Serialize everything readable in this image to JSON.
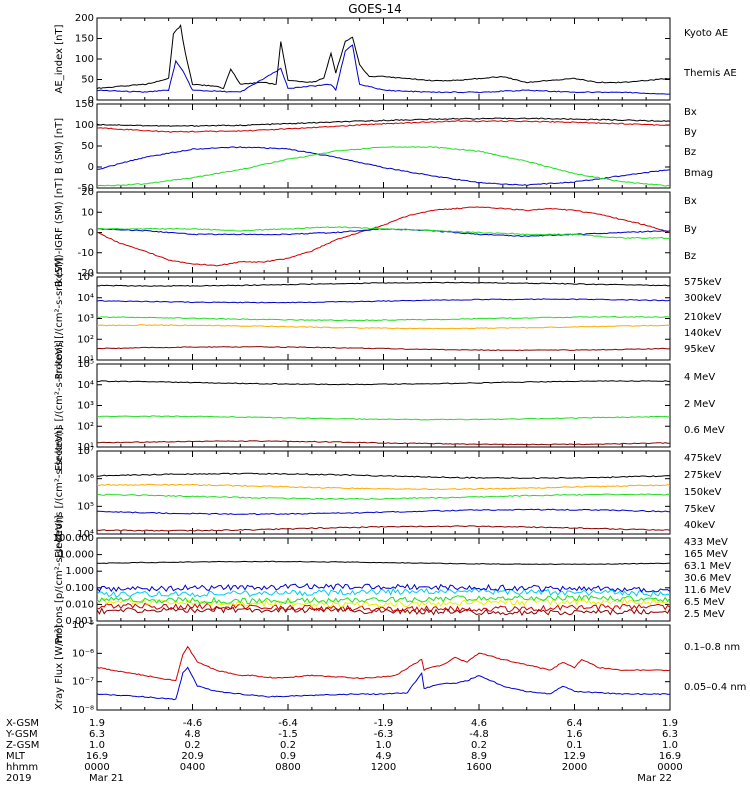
{
  "title": "GOES-14",
  "colors": {
    "black": "#000000",
    "blue": "#0000cc",
    "red": "#cc0000",
    "green": "#22dd22",
    "orange": "#ffaa00",
    "darkred": "#8b0000",
    "lightblue": "#3399ff",
    "cyan": "#00ccee",
    "yellow": "#eeee00"
  },
  "chart_data": [
    {
      "type": "line",
      "ylabel": "AE_index [nT]",
      "yticks": [
        "200",
        "150",
        "100",
        "50",
        "0"
      ],
      "ylim": [
        0,
        210
      ],
      "legend": [
        "Kyoto AE",
        "Themis AE"
      ],
      "series": [
        {
          "name": "Themis AE",
          "color": "black",
          "x": [
            0,
            1,
            2,
            3,
            3.2,
            3.5,
            3.7,
            4,
            5,
            5.3,
            5.6,
            6,
            7,
            7.5,
            7.7,
            8,
            9,
            9.5,
            9.8,
            10,
            10.4,
            10.7,
            11,
            11.4,
            12,
            13,
            14,
            15,
            16,
            17,
            18,
            19,
            20,
            21,
            22,
            23,
            24
          ],
          "y": [
            30,
            35,
            40,
            55,
            170,
            190,
            120,
            40,
            35,
            30,
            80,
            40,
            45,
            40,
            150,
            50,
            45,
            55,
            120,
            70,
            150,
            160,
            90,
            60,
            60,
            55,
            50,
            50,
            55,
            60,
            45,
            50,
            55,
            45,
            45,
            50,
            55
          ]
        },
        {
          "name": "Kyoto AE",
          "color": "blue",
          "x": [
            0,
            2,
            3,
            3.3,
            3.6,
            4,
            6,
            7.7,
            8,
            9.8,
            10,
            10.4,
            10.7,
            11,
            12,
            14,
            16,
            18,
            20,
            22,
            24
          ],
          "y": [
            25,
            20,
            25,
            100,
            75,
            25,
            20,
            80,
            30,
            40,
            25,
            125,
            140,
            40,
            25,
            20,
            20,
            25,
            20,
            20,
            15
          ]
        }
      ]
    },
    {
      "type": "line",
      "ylabel": "B (SM) [nT]",
      "yticks": [
        "150",
        "100",
        "50",
        "0",
        "-50"
      ],
      "ylim": [
        -55,
        150
      ],
      "legend": [
        "Bx",
        "By",
        "Bz",
        "Bmag"
      ],
      "series": [
        {
          "name": "Bmag",
          "color": "black",
          "x": [
            0,
            3,
            6,
            9,
            12,
            15,
            18,
            21,
            24
          ],
          "y": [
            100,
            96,
            98,
            104,
            110,
            114,
            115,
            112,
            108
          ]
        },
        {
          "name": "Bz",
          "color": "red",
          "x": [
            0,
            3,
            6,
            9,
            12,
            15,
            18,
            21,
            24
          ],
          "y": [
            92,
            82,
            84,
            92,
            102,
            108,
            108,
            104,
            98
          ]
        },
        {
          "name": "Bx",
          "color": "blue",
          "x": [
            0,
            2,
            4,
            6,
            8,
            10,
            12,
            14,
            16,
            18,
            20,
            22,
            24
          ],
          "y": [
            -10,
            20,
            40,
            45,
            40,
            20,
            -5,
            -25,
            -42,
            -48,
            -40,
            -25,
            -10
          ]
        },
        {
          "name": "By",
          "color": "green",
          "x": [
            0,
            2,
            4,
            6,
            8,
            10,
            12,
            14,
            16,
            18,
            20,
            22,
            24
          ],
          "y": [
            -50,
            -45,
            -30,
            -10,
            15,
            35,
            45,
            45,
            35,
            10,
            -20,
            -40,
            -50
          ]
        }
      ]
    },
    {
      "type": "line",
      "ylabel": "B (SM)-IGRF (SM) [nT]",
      "yticks": [
        "20",
        "10",
        "0",
        "-10",
        "-20"
      ],
      "ylim": [
        -22,
        22
      ],
      "legend": [
        "Bx",
        "By",
        "Bz"
      ],
      "series": [
        {
          "name": "Bz",
          "color": "red",
          "x": [
            0,
            1,
            2,
            3,
            4,
            5,
            6,
            7,
            8,
            9,
            10,
            11,
            12,
            13,
            14,
            15,
            16,
            17,
            18,
            19,
            20,
            21,
            22,
            23,
            24
          ],
          "y": [
            0,
            -6,
            -10,
            -15,
            -17,
            -18,
            -16,
            -16,
            -14,
            -10,
            -4,
            0,
            4,
            9,
            12,
            13,
            14,
            13,
            12,
            13,
            12,
            10,
            7,
            4,
            0
          ]
        },
        {
          "name": "Bx",
          "color": "blue",
          "x": [
            0,
            2,
            4,
            6,
            8,
            10,
            12,
            14,
            16,
            18,
            20,
            22,
            24
          ],
          "y": [
            2,
            1,
            -1,
            -1,
            -1,
            0,
            2,
            1,
            -1,
            -2,
            -1,
            0,
            1
          ]
        },
        {
          "name": "By",
          "color": "green",
          "x": [
            0,
            2,
            4,
            6,
            8,
            10,
            12,
            14,
            16,
            18,
            20,
            22,
            24
          ],
          "y": [
            2,
            2,
            2,
            1,
            2,
            3,
            2,
            1,
            0,
            -1,
            -1,
            -3,
            -3
          ]
        }
      ]
    },
    {
      "type": "line",
      "ylabel": "Protons [/(cm²-s-sr-keV)]",
      "yticks": [
        "10⁵",
        "10⁴",
        "10³",
        "10²",
        "10¹"
      ],
      "ylim_log": [
        1,
        5
      ],
      "legend": [
        "575keV",
        "300keV",
        "210keV",
        "140keV",
        "95keV"
      ],
      "series": [
        {
          "name": "575keV",
          "color": "darkred",
          "y": 1.55
        },
        {
          "name": "300keV",
          "color": "orange",
          "y": 2.6
        },
        {
          "name": "210keV",
          "color": "green",
          "y": 3.0
        },
        {
          "name": "140keV",
          "color": "blue",
          "y": 3.85
        },
        {
          "name": "95keV",
          "color": "black",
          "y": 4.65
        }
      ]
    },
    {
      "type": "line",
      "ylabel": "Electrons [/(cm²-s-sr-keV)]",
      "yticks": [
        "10⁵",
        "10⁴",
        "10³",
        "10²",
        "10¹"
      ],
      "ylim_log": [
        1,
        5
      ],
      "legend": [
        "4 MeV",
        "2 MeV",
        "0.6 MeV"
      ],
      "series": [
        {
          "name": "4 MeV",
          "color": "darkred",
          "y": 1.2
        },
        {
          "name": "2 MeV",
          "color": "green",
          "y": 2.4
        },
        {
          "name": "0.6 MeV",
          "color": "black",
          "y": 4.1
        }
      ]
    },
    {
      "type": "line",
      "ylabel": "Electrons [/(cm²-s-sr-keV)]",
      "yticks": [
        "10⁷",
        "10⁶",
        "10⁵",
        "10⁴"
      ],
      "ylim_log": [
        4,
        7
      ],
      "legend": [
        "475keV",
        "275keV",
        "150keV",
        "75keV",
        "40keV"
      ],
      "series": [
        {
          "name": "475keV",
          "color": "black",
          "y": 6.1
        },
        {
          "name": "275keV",
          "color": "orange",
          "y": 5.7
        },
        {
          "name": "150keV",
          "color": "green",
          "y": 5.35
        },
        {
          "name": "75keV",
          "color": "blue",
          "y": 4.8
        },
        {
          "name": "40keV",
          "color": "darkred",
          "y": 4.2
        }
      ]
    },
    {
      "type": "line",
      "ylabel": "Protons [p/(cm²-s-sr-keV)]",
      "yticks": [
        "100.000",
        "10.000",
        "1.000",
        "0.100",
        "0.010",
        "0.001"
      ],
      "ylim_log": [
        -3,
        2
      ],
      "legend": [
        "433 MeV",
        "165 MeV",
        "63.1 MeV",
        "30.6 MeV",
        "11.6 MeV",
        "6.5 MeV",
        "2.5 MeV"
      ],
      "series": [
        {
          "name": "433 MeV",
          "color": "darkred",
          "y": -2.4
        },
        {
          "name": "165 MeV",
          "color": "red",
          "y": -2.2
        },
        {
          "name": "63.1 MeV",
          "color": "yellow",
          "y": -1.9
        },
        {
          "name": "30.6 MeV",
          "color": "green",
          "y": -1.7
        },
        {
          "name": "11.6 MeV",
          "color": "cyan",
          "y": -1.3
        },
        {
          "name": "6.5 MeV",
          "color": "blue",
          "y": -1.0
        },
        {
          "name": "2.5 MeV",
          "color": "black",
          "y": 0.5
        }
      ]
    },
    {
      "type": "line",
      "ylabel": "Xray Flux [W/m²]",
      "yticks": [
        "10⁻⁵",
        "10⁻⁶",
        "10⁻⁷",
        "10⁻⁸"
      ],
      "ylim_log": [
        -8.2,
        -5
      ],
      "legend": [
        "0.1–0.8 nm",
        "0.05–0.4 nm"
      ],
      "series": [
        {
          "name": "0.1–0.8 nm",
          "color": "red",
          "x": [
            0,
            2,
            3.3,
            3.6,
            3.8,
            4.2,
            5,
            6,
            6.5,
            7.5,
            9,
            11,
            12,
            12.5,
            13.6,
            13.7,
            14,
            14.5,
            15,
            15.2,
            15.5,
            16,
            17,
            18,
            19,
            19.5,
            20,
            20.3,
            21,
            22,
            24
          ],
          "y": [
            -6.6,
            -6.9,
            -7.1,
            -6.1,
            -5.8,
            -6.4,
            -6.7,
            -6.9,
            -6.9,
            -7.0,
            -6.9,
            -7.0,
            -6.95,
            -6.9,
            -6.3,
            -6.7,
            -6.6,
            -6.5,
            -6.2,
            -6.3,
            -6.4,
            -6.05,
            -6.3,
            -6.5,
            -6.7,
            -6.4,
            -6.6,
            -6.3,
            -6.6,
            -6.7,
            -6.7
          ]
        },
        {
          "name": "0.05–0.4 nm",
          "color": "blue",
          "x": [
            0,
            2,
            3.3,
            3.6,
            3.8,
            4.2,
            5,
            6,
            7.2,
            9,
            11,
            12,
            13,
            13.6,
            13.7,
            14,
            14.5,
            15,
            15.5,
            16,
            17,
            18,
            19,
            19.5,
            20,
            21,
            22,
            24
          ],
          "y": [
            -7.6,
            -7.7,
            -7.8,
            -6.8,
            -6.6,
            -7.3,
            -7.5,
            -7.6,
            -7.7,
            -7.65,
            -7.6,
            -7.6,
            -7.55,
            -6.8,
            -7.4,
            -7.3,
            -7.2,
            -7.2,
            -7.1,
            -6.9,
            -7.3,
            -7.5,
            -7.6,
            -7.3,
            -7.5,
            -7.55,
            -7.6,
            -7.6
          ]
        }
      ]
    }
  ],
  "ephemeris": {
    "labels": [
      "X-GSM",
      "Y-GSM",
      "Z-GSM",
      "MLT",
      "hhmm",
      "2019"
    ],
    "columns": [
      [
        "1.9",
        "6.3",
        "1.0",
        "16.9",
        "0000",
        "Mar 21"
      ],
      [
        "-4.6",
        "4.8",
        "0.2",
        "20.9",
        "0400",
        ""
      ],
      [
        "-6.4",
        "-1.5",
        "0.2",
        "0.9",
        "0800",
        ""
      ],
      [
        "-1.9",
        "-6.3",
        "1.0",
        "4.9",
        "1200",
        ""
      ],
      [
        "4.6",
        "-4.8",
        "0.2",
        "8.9",
        "1600",
        ""
      ],
      [
        "6.4",
        "1.6",
        "0.1",
        "12.9",
        "2000",
        ""
      ],
      [
        "1.9",
        "6.3",
        "1.0",
        "16.9",
        "0000",
        "Mar 22"
      ]
    ]
  }
}
